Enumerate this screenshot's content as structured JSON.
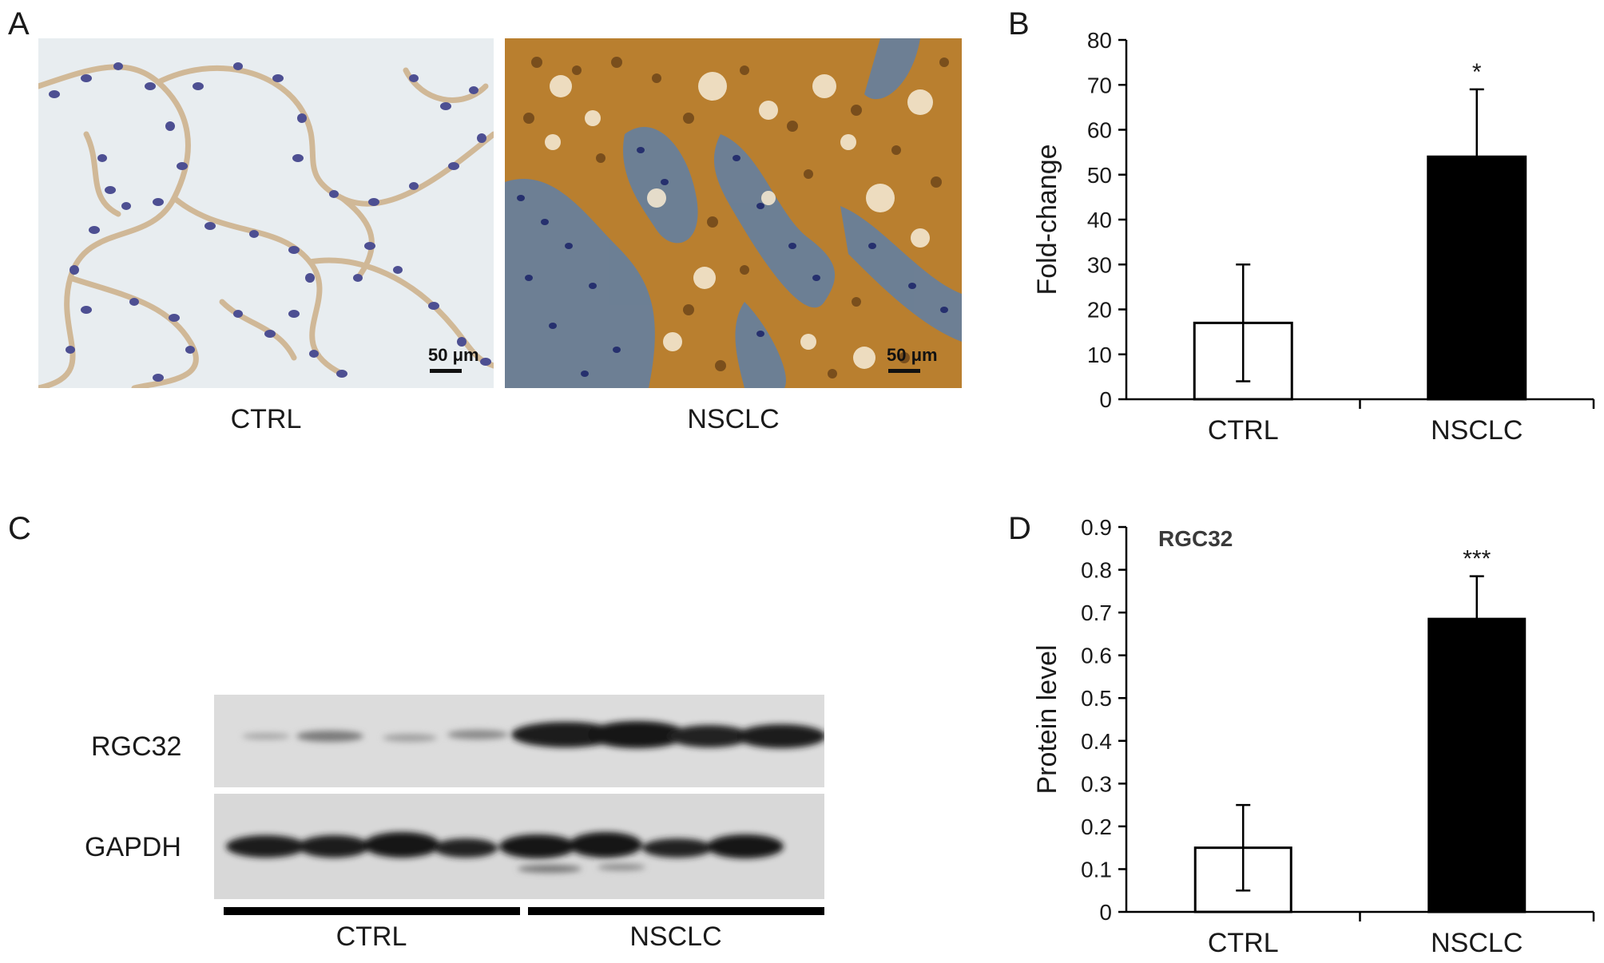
{
  "panels": {
    "a": {
      "letter": "A",
      "images": [
        {
          "label": "CTRL",
          "scale": "50 μm"
        },
        {
          "label": "NSCLC",
          "scale": "50 μm"
        }
      ]
    },
    "b": {
      "letter": "B"
    },
    "c": {
      "letter": "C",
      "rows": [
        "RGC32",
        "GAPDH"
      ],
      "groups": [
        "CTRL",
        "NSCLC"
      ]
    },
    "d": {
      "letter": "D"
    }
  },
  "chart_data": [
    {
      "type": "bar",
      "categories": [
        "CTRL",
        "NSCLC"
      ],
      "values": [
        17,
        54
      ],
      "errors": [
        13,
        15
      ],
      "significance": [
        "",
        "*"
      ],
      "title": "",
      "xlabel": "",
      "ylabel": "Fold-change",
      "ylim": [
        0,
        80
      ],
      "yticks": [
        "0",
        "10",
        "20",
        "30",
        "40",
        "50",
        "60",
        "70",
        "80"
      ],
      "bar_fills": [
        "#ffffff",
        "#000000"
      ],
      "grid": false
    },
    {
      "type": "bar",
      "categories": [
        "CTRL",
        "NSCLC"
      ],
      "values": [
        0.15,
        0.685
      ],
      "errors": [
        0.1,
        0.1
      ],
      "significance": [
        "",
        "***"
      ],
      "title": "RGC32",
      "xlabel": "",
      "ylabel": "Protein level",
      "ylim": [
        0,
        0.9
      ],
      "yticks": [
        "0",
        "0.1",
        "0.2",
        "0.3",
        "0.4",
        "0.5",
        "0.6",
        "0.7",
        "0.8",
        "0.9"
      ],
      "bar_fills": [
        "#ffffff",
        "#000000"
      ],
      "grid": false
    }
  ]
}
